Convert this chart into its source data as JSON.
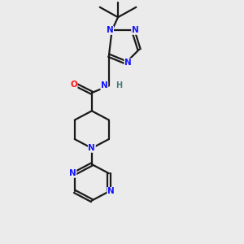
{
  "bg_color": "#ebebeb",
  "bond_color": "#1a1a1a",
  "N_color": "#1414ff",
  "O_color": "#ff1414",
  "H_color": "#4a7a7a",
  "line_width": 1.6,
  "figsize": [
    3.0,
    3.0
  ],
  "dpi": 100,
  "xlim": [
    0,
    10
  ],
  "ylim": [
    0,
    12
  ]
}
